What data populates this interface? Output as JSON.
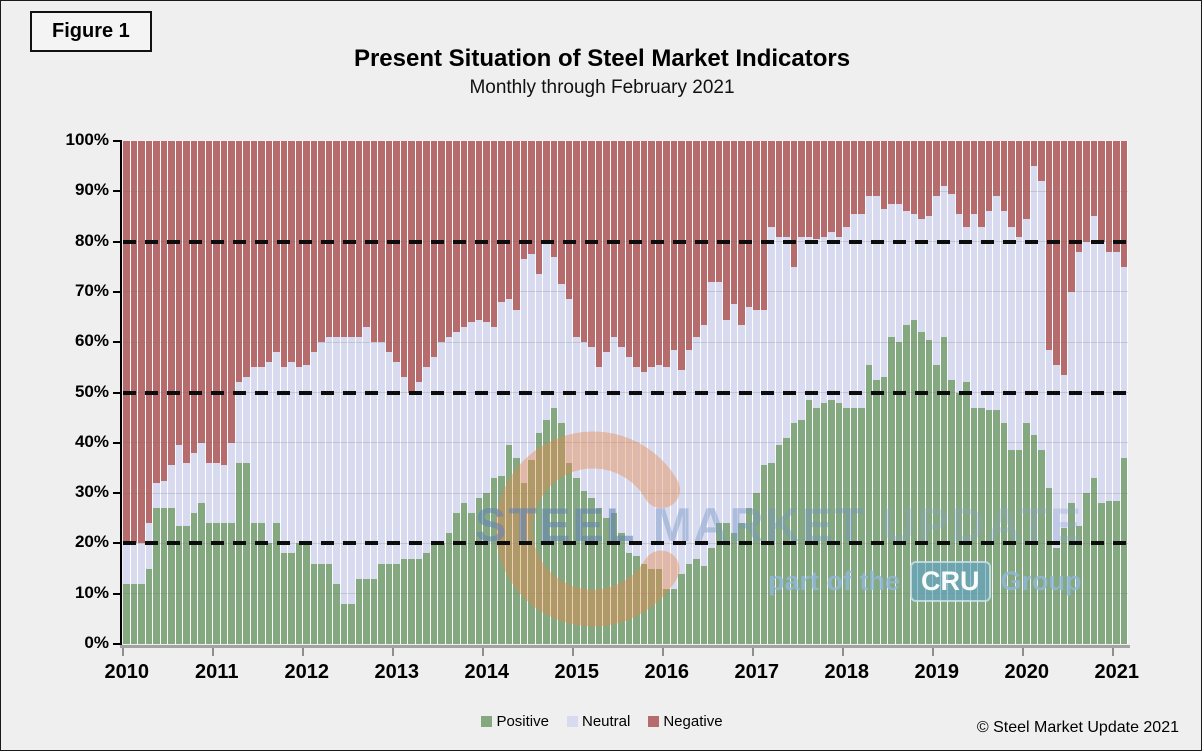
{
  "figure_label": "Figure 1",
  "header": {
    "title": "Present Situation of Steel Market Indicators",
    "subtitle": "Monthly through February 2021"
  },
  "watermark": {
    "word1": "STEEL",
    "word2": "MARKET",
    "word3": "UPDATE",
    "line2_prefix": "part of the",
    "line2_badge": "CRU",
    "line2_suffix": "Group",
    "crescent_color": "rgba(232,135,75,0.42)"
  },
  "legend": {
    "items": [
      {
        "label": "Positive",
        "color": "#84a87f"
      },
      {
        "label": "Neutral",
        "color": "#d8dbf0"
      },
      {
        "label": "Negative",
        "color": "#b66c6c"
      }
    ]
  },
  "copyright": "© Steel Market Update 2021",
  "chart_data": {
    "type": "bar",
    "stacking": "percent",
    "title": "Present Situation of Steel Market Indicators",
    "subtitle": "Monthly through February 2021",
    "x_start": "2010-01",
    "x_end": "2021-02",
    "months_per_year": 12,
    "x_tick_labels": [
      "2010",
      "2011",
      "2012",
      "2013",
      "2014",
      "2015",
      "2016",
      "2017",
      "2018",
      "2019",
      "2020",
      "2021"
    ],
    "y_tick_labels": [
      "0%",
      "10%",
      "20%",
      "30%",
      "40%",
      "50%",
      "60%",
      "70%",
      "80%",
      "90%",
      "100%"
    ],
    "ylim": [
      0,
      100
    ],
    "gridlines_at": [
      10,
      20,
      30,
      40,
      50,
      60,
      70,
      80,
      90
    ],
    "dashed_lines_at": [
      20,
      50,
      80
    ],
    "legend_position": "bottom-center",
    "series": [
      {
        "name": "Positive",
        "color": "#84a87f",
        "values": [
          12,
          12,
          12,
          15,
          27,
          27,
          27,
          23.5,
          23.5,
          26,
          28,
          24,
          24,
          24,
          24,
          36,
          36,
          24,
          24,
          20,
          24,
          18,
          18,
          20,
          20,
          16,
          16,
          16,
          12,
          8,
          8,
          13,
          13,
          13,
          16,
          16,
          16,
          17,
          17,
          17,
          18,
          20,
          20,
          22,
          26,
          28,
          26,
          29,
          30,
          33,
          33.5,
          39.5,
          37,
          32,
          36.5,
          42,
          44.5,
          47,
          44,
          36,
          33,
          30.5,
          29,
          27,
          25,
          26,
          22,
          18,
          17.5,
          16,
          15,
          15,
          11,
          11,
          14,
          16,
          17,
          15.5,
          19,
          24,
          24,
          22,
          24,
          27,
          30,
          35.5,
          36,
          39.5,
          41,
          44,
          44.5,
          48.5,
          47,
          48,
          48.5,
          48,
          47,
          47,
          47,
          55.5,
          52.5,
          53,
          61,
          60,
          63.5,
          64.5,
          62,
          60.5,
          55.5,
          61,
          52.5,
          50,
          52,
          47,
          47,
          46.5,
          46.5,
          44,
          38.5,
          38.5,
          44,
          41.5,
          38.5,
          31,
          19,
          23,
          28,
          23.5,
          30,
          33,
          28,
          28.5,
          28.5,
          37
        ]
      },
      {
        "name": "Neutral",
        "color": "#d8dbf0",
        "values": [
          8,
          8,
          8,
          9,
          5,
          5.5,
          8.5,
          16,
          12.5,
          12,
          12,
          12,
          12,
          11.5,
          16,
          16,
          17,
          31,
          31,
          36,
          34,
          37,
          38,
          35,
          35.5,
          42,
          44,
          45,
          49,
          53,
          53,
          48,
          50,
          47,
          44,
          42,
          40,
          36,
          33,
          35,
          37,
          37,
          40,
          39,
          36,
          35,
          38,
          35.5,
          34,
          30,
          34.5,
          29,
          29.5,
          44.5,
          41,
          31.5,
          35.5,
          30,
          27.5,
          32.5,
          28,
          29.5,
          30,
          28,
          33,
          35,
          37,
          39,
          37.5,
          38,
          40,
          40.5,
          44,
          47.5,
          40.5,
          42.5,
          44,
          48,
          53,
          48,
          40.5,
          45.5,
          39.5,
          40,
          36.5,
          31,
          47,
          41.5,
          40,
          31,
          36.5,
          32.5,
          33.5,
          33,
          33.5,
          33,
          36,
          38.5,
          38.5,
          33.5,
          36.5,
          33.5,
          26.5,
          27.5,
          22.5,
          21,
          22.5,
          24.5,
          33.5,
          30,
          37,
          35.5,
          31,
          38.5,
          36,
          39.5,
          42.5,
          42,
          44.5,
          42.5,
          40.5,
          53.5,
          53.5,
          27.5,
          36.5,
          30.5,
          42,
          54.5,
          50,
          52,
          52,
          49.5,
          49.5,
          38
        ]
      },
      {
        "name": "Negative",
        "color": "#b66c6c",
        "values_rule": "remainder_to_100"
      }
    ]
  }
}
